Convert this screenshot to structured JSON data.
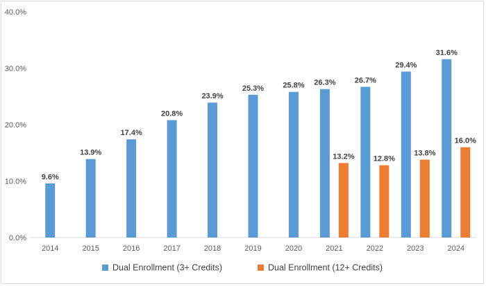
{
  "chart_data": {
    "type": "bar",
    "categories": [
      "2014",
      "2015",
      "2016",
      "2017",
      "2018",
      "2019",
      "2020",
      "2021",
      "2022",
      "2023",
      "2024"
    ],
    "series": [
      {
        "name": "Dual Enrollment (3+ Credits)",
        "color": "#5b9bd5",
        "values": [
          9.6,
          13.9,
          17.4,
          20.8,
          23.9,
          25.3,
          25.8,
          26.3,
          26.7,
          29.4,
          31.6
        ],
        "labels": [
          "9.6%",
          "13.9%",
          "17.4%",
          "20.8%",
          "23.9%",
          "25.3%",
          "25.8%",
          "26.3%",
          "26.7%",
          "29.4%",
          "31.6%"
        ]
      },
      {
        "name": "Dual Enrollment (12+ Credits)",
        "color": "#ed7d31",
        "values": [
          null,
          null,
          null,
          null,
          null,
          null,
          null,
          13.2,
          12.8,
          13.8,
          16.0
        ],
        "labels": [
          null,
          null,
          null,
          null,
          null,
          null,
          null,
          "13.2%",
          "12.8%",
          "13.8%",
          "16.0%"
        ]
      }
    ],
    "y_ticks": [
      0,
      10,
      20,
      30,
      40
    ],
    "y_tick_labels": [
      "0.0%",
      "10.0%",
      "20.0%",
      "30.0%",
      "40.0%"
    ],
    "ylim": [
      0,
      40
    ],
    "grid": false,
    "legend_position": "bottom"
  }
}
